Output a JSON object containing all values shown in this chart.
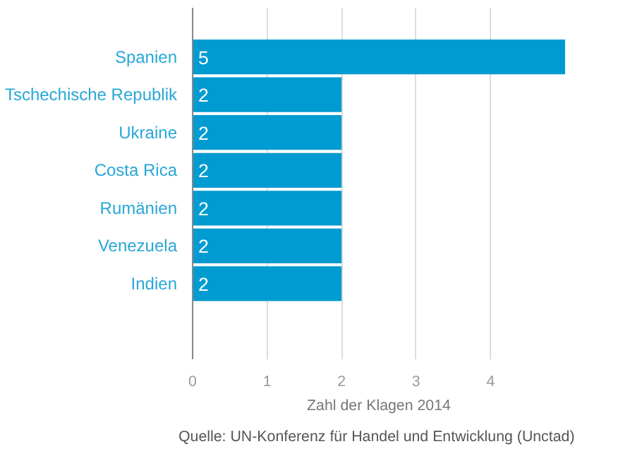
{
  "chart_data": {
    "type": "bar",
    "orientation": "horizontal",
    "categories": [
      "Spanien",
      "Tschechische Republik",
      "Ukraine",
      "Costa Rica",
      "Rumänien",
      "Venezuela",
      "Indien"
    ],
    "values": [
      5,
      2,
      2,
      2,
      2,
      2,
      2
    ],
    "color": "#009bd0",
    "xlabel": "Zahl der Klagen 2014",
    "xlim": [
      0,
      5
    ],
    "xticks": [
      0,
      1,
      2,
      3,
      4
    ],
    "grid": "x",
    "data_labels": true,
    "annotations": [
      "Quelle: UN-Konferenz für Handel und Entwicklung (Unctad)"
    ]
  }
}
